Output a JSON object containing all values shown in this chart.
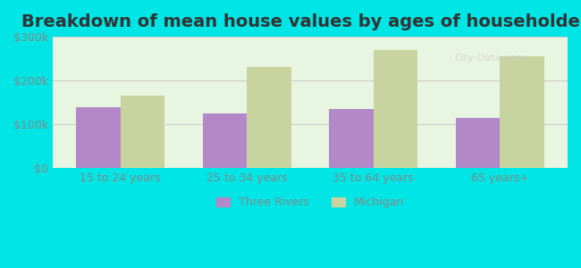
{
  "title": "Breakdown of mean house values by ages of householders",
  "categories": [
    "15 to 24 years",
    "25 to 34 years",
    "35 to 64 years",
    "65 years+"
  ],
  "three_rivers": [
    140000,
    125000,
    135000,
    115000
  ],
  "michigan": [
    165000,
    230000,
    270000,
    255000
  ],
  "three_rivers_color": "#b388c8",
  "michigan_color": "#c8d4a0",
  "background_color": "#e8f5e0",
  "outer_background": "#00e5e5",
  "ylim": [
    0,
    300000
  ],
  "yticks": [
    0,
    100000,
    200000,
    300000
  ],
  "ytick_labels": [
    "$0",
    "$100k",
    "$200k",
    "$300k"
  ],
  "legend_labels": [
    "Three Rivers",
    "Michigan"
  ],
  "title_fontsize": 14,
  "bar_width": 0.35,
  "grid_color": "#cccccc"
}
